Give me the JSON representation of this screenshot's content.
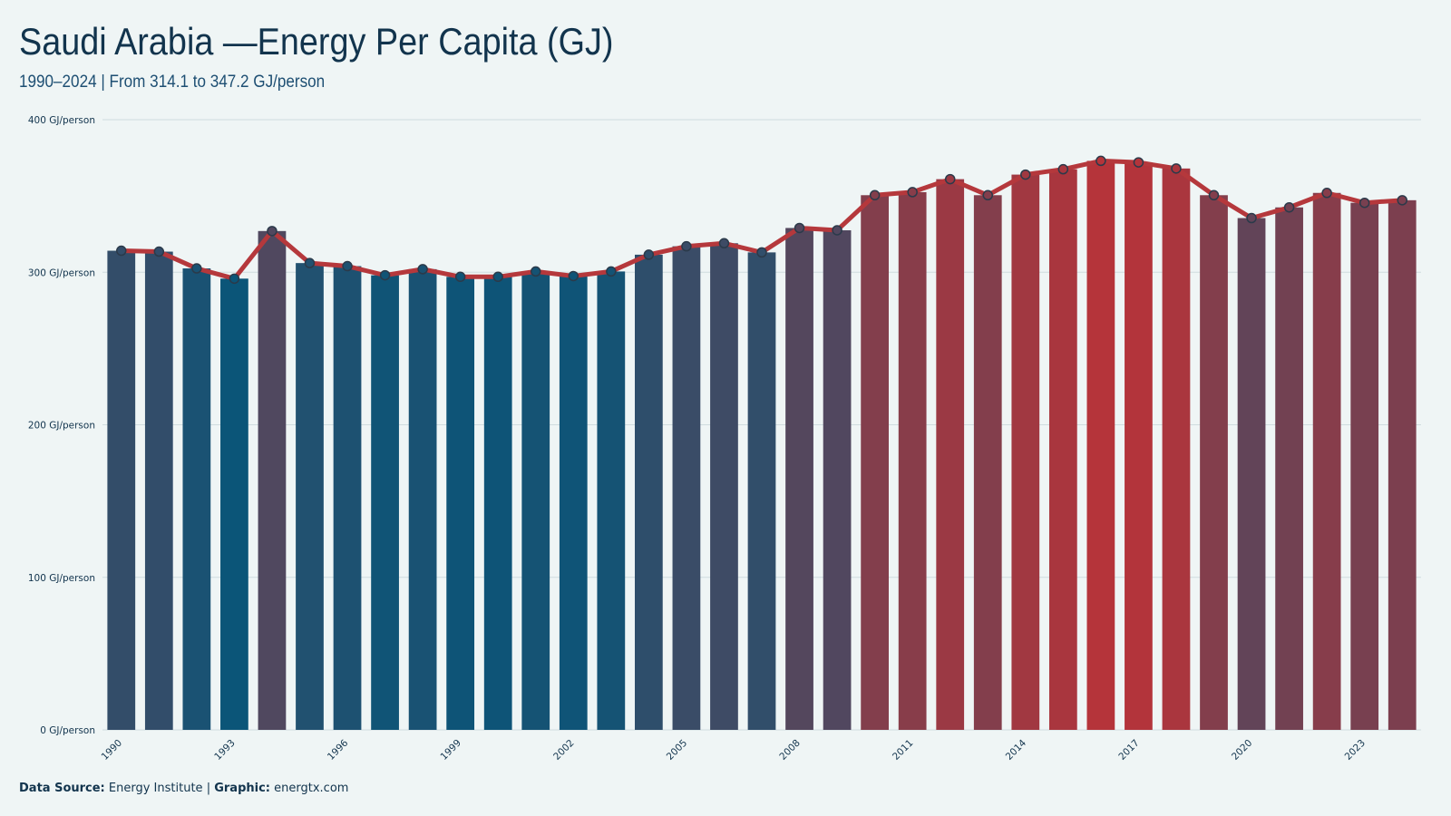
{
  "header": {
    "title": "Saudi Arabia —Energy Per Capita (GJ)",
    "subtitle": "1990–2024 | From 314.1 to 347.2 GJ/person"
  },
  "footer": {
    "source_label": "Data Source:",
    "source_value": "Energy Institute",
    "separator": "|",
    "graphic_label": "Graphic:",
    "graphic_value": "energtx.com"
  },
  "colors": {
    "background": "#eff5f5",
    "line": "#b5383c",
    "low": "#0b5578",
    "high": "#b5343a",
    "marker_stroke": "#2b3a4a",
    "grid": "#cfdcdf"
  },
  "chart_data": {
    "type": "bar",
    "title": "Saudi Arabia —Energy Per Capita (GJ)",
    "subtitle": "1990–2024 | From 314.1 to 347.2 GJ/person",
    "xlabel": "",
    "ylabel": "",
    "ylim": [
      0,
      400
    ],
    "y_ticks": [
      0,
      100,
      200,
      300,
      400
    ],
    "y_tick_labels": [
      "0 GJ/person",
      "100 GJ/person",
      "200 GJ/person",
      "300 GJ/person",
      "400 GJ/person"
    ],
    "x_tick_labels": [
      "1990",
      "1993",
      "1996",
      "1999",
      "2002",
      "2005",
      "2008",
      "2011",
      "2014",
      "2017",
      "2020",
      "2023"
    ],
    "grid": true,
    "categories": [
      "1990",
      "1991",
      "1992",
      "1993",
      "1994",
      "1995",
      "1996",
      "1997",
      "1998",
      "1999",
      "2000",
      "2001",
      "2002",
      "2003",
      "2004",
      "2005",
      "2006",
      "2007",
      "2008",
      "2009",
      "2010",
      "2011",
      "2012",
      "2013",
      "2014",
      "2015",
      "2016",
      "2017",
      "2018",
      "2019",
      "2020",
      "2021",
      "2022",
      "2023",
      "2024"
    ],
    "series": [
      {
        "values": [
          314.1,
          313.5,
          302.5,
          295.8,
          327.0,
          306.0,
          304.0,
          298.0,
          302.0,
          297.0,
          297.0,
          300.5,
          297.5,
          300.5,
          311.5,
          317.0,
          319.0,
          313.0,
          329.0,
          327.5,
          350.5,
          352.5,
          361.0,
          350.5,
          364.0,
          367.5,
          373.0,
          372.0,
          368.0,
          350.5,
          335.5,
          342.5,
          352.0,
          345.5,
          347.2
        ]
      }
    ]
  }
}
